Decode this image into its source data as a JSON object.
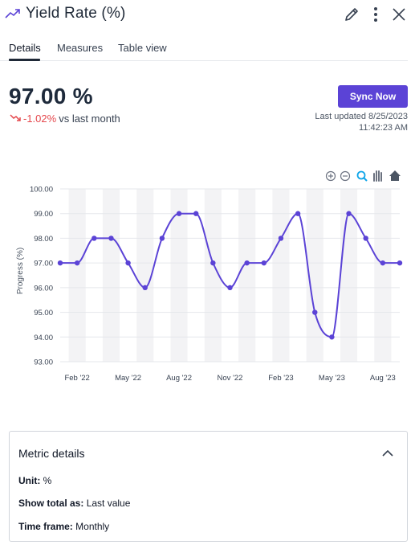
{
  "header": {
    "title": "Yield Rate (%)",
    "icons": [
      "trend-up-icon",
      "pencil-icon",
      "more-vertical-icon",
      "close-icon"
    ]
  },
  "tabs": [
    {
      "label": "Details",
      "active": true
    },
    {
      "label": "Measures",
      "active": false
    },
    {
      "label": "Table view",
      "active": false
    }
  ],
  "kpi": {
    "value": "97.00 %",
    "delta": "-1.02%",
    "delta_suffix": "vs last month",
    "delta_color": "#e5484d",
    "delta_icon": "trend-down-icon"
  },
  "sync": {
    "label": "Sync Now",
    "last_updated": "Last updated 8/25/2023",
    "last_updated_time": "11:42:23 AM",
    "accent": "#5b43d6"
  },
  "chart_toolbar": [
    "zoom-in-icon",
    "zoom-out-icon",
    "magnifier-icon",
    "pan-hand-icon",
    "home-icon"
  ],
  "chart_data": {
    "type": "line",
    "ylabel": "Progress (%)",
    "xlabel": "",
    "ylim": [
      93,
      100
    ],
    "yticks": [
      "93.00",
      "94.00",
      "95.00",
      "96.00",
      "97.00",
      "98.00",
      "99.00",
      "100.00"
    ],
    "xtick_labels": [
      "Feb '22",
      "May '22",
      "Aug '22",
      "Nov '22",
      "Feb '23",
      "May '23",
      "Aug '23"
    ],
    "x": [
      "2022-01",
      "2022-02",
      "2022-03",
      "2022-04",
      "2022-05",
      "2022-06",
      "2022-07",
      "2022-08",
      "2022-09",
      "2022-10",
      "2022-11",
      "2022-12",
      "2023-01",
      "2023-02",
      "2023-03",
      "2023-04",
      "2023-05",
      "2023-06",
      "2023-07",
      "2023-08",
      "2023-09"
    ],
    "series": [
      {
        "values": [
          97,
          97,
          98,
          98,
          97,
          96,
          98,
          99,
          99,
          97,
          96,
          97,
          97,
          98,
          99,
          95,
          94,
          99,
          98,
          97,
          97
        ],
        "color": "#5b43d6"
      }
    ],
    "grid": true
  },
  "metric_details": {
    "title": "Metric details",
    "unit_label": "Unit:",
    "unit_value": "%",
    "total_label": "Show total as:",
    "total_value": "Last value",
    "timeframe_label": "Time frame:",
    "timeframe_value": "Monthly"
  }
}
